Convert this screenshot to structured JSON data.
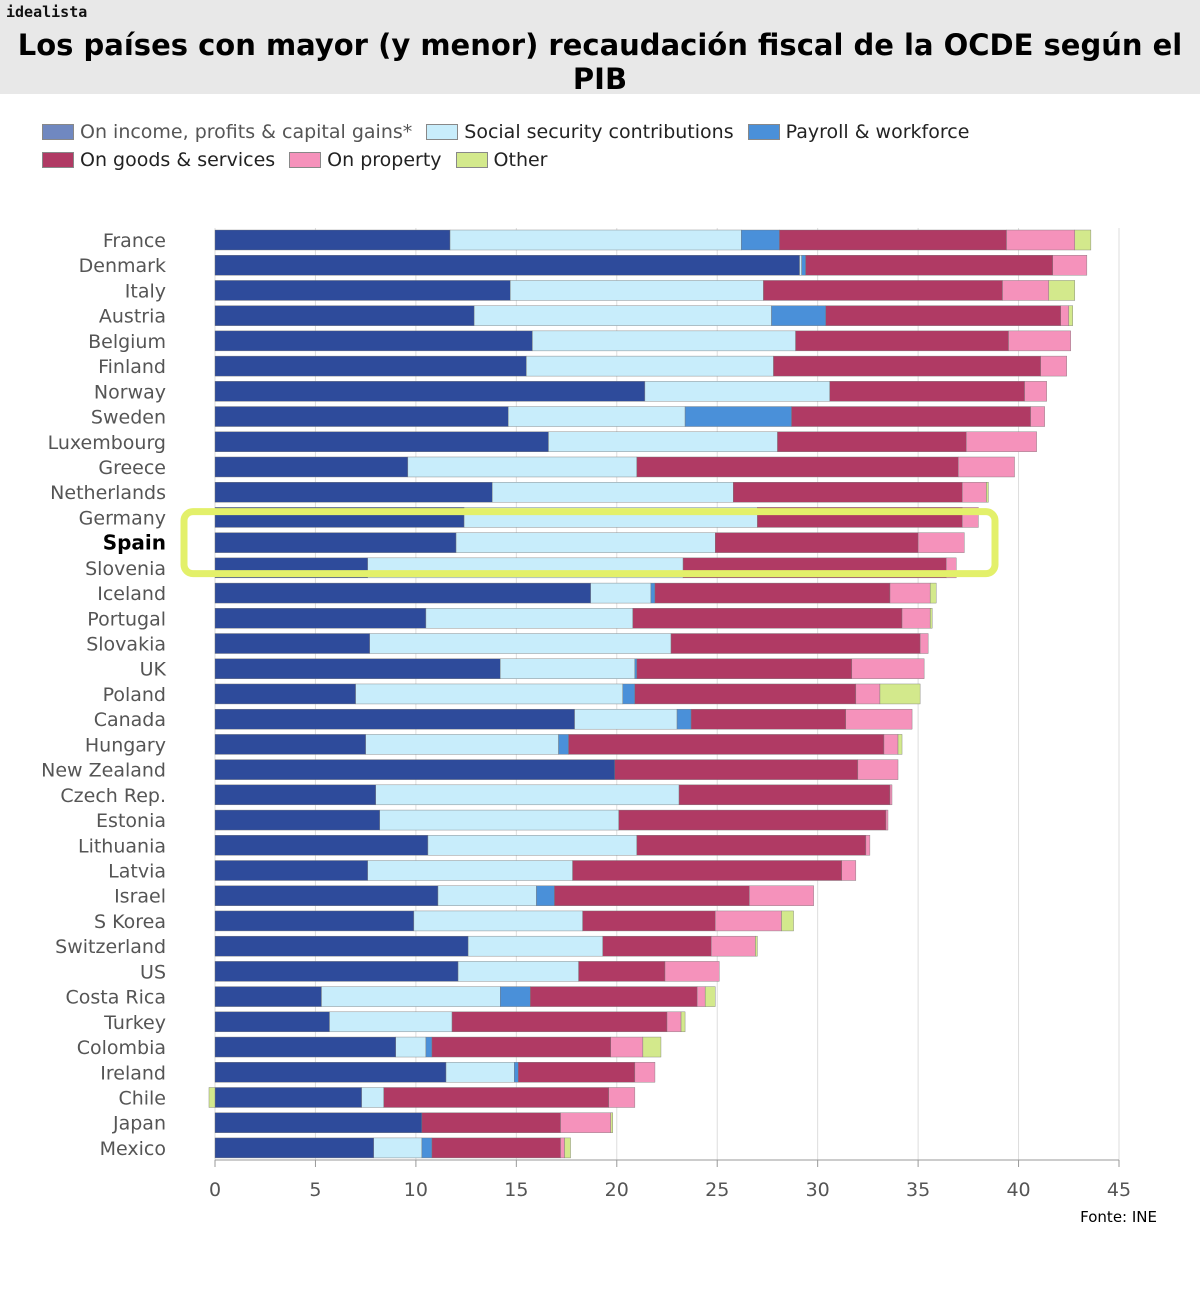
{
  "header": {
    "logo": "idealista",
    "title": "Los países con mayor (y menor) recaudación fiscal de la OCDE según el PIB"
  },
  "source": "Fonte: INE",
  "highlight_color": "#e3f06a",
  "chart_data": {
    "type": "bar",
    "orientation": "horizontal-stacked",
    "xlim": [
      0,
      45
    ],
    "xticks": [
      0,
      5,
      10,
      15,
      20,
      25,
      30,
      35,
      40,
      45
    ],
    "grid": "vertical",
    "legend_position": "top-left",
    "highlighted": "Spain",
    "series": [
      {
        "name": "On income, profits & capital gains*",
        "color": "#2e4b9b",
        "legend_color": "#7088c0"
      },
      {
        "name": "Social security contributions",
        "color": "#c8edfb"
      },
      {
        "name": "Payroll & workforce",
        "color": "#4a90d9"
      },
      {
        "name": "On goods & services",
        "color": "#b03a64"
      },
      {
        "name": "On property",
        "color": "#f592bb"
      },
      {
        "name": "Other",
        "color": "#d3e98c"
      }
    ],
    "categories": [
      "France",
      "Denmark",
      "Italy",
      "Austria",
      "Belgium",
      "Finland",
      "Norway",
      "Sweden",
      "Luxembourg",
      "Greece",
      "Netherlands",
      "Germany",
      "Spain",
      "Slovenia",
      "Iceland",
      "Portugal",
      "Slovakia",
      "UK",
      "Poland",
      "Canada",
      "Hungary",
      "New Zealand",
      "Czech Rep.",
      "Estonia",
      "Lithuania",
      "Latvia",
      "Israel",
      "S Korea",
      "Switzerland",
      "US",
      "Costa Rica",
      "Turkey",
      "Colombia",
      "Ireland",
      "Chile",
      "Japan",
      "Mexico"
    ],
    "values": [
      [
        11.7,
        14.5,
        1.9,
        11.3,
        3.4,
        0.8
      ],
      [
        29.1,
        0.1,
        0.2,
        12.3,
        1.7,
        0
      ],
      [
        14.7,
        12.6,
        0,
        11.9,
        2.3,
        1.3
      ],
      [
        12.9,
        14.8,
        2.7,
        11.7,
        0.4,
        0.2
      ],
      [
        15.8,
        13.1,
        0,
        10.6,
        3.1,
        0
      ],
      [
        15.5,
        12.3,
        0,
        13.3,
        1.3,
        0
      ],
      [
        21.4,
        9.2,
        0,
        9.7,
        1.1,
        0
      ],
      [
        14.6,
        8.8,
        5.3,
        11.9,
        0.7,
        0
      ],
      [
        16.6,
        11.4,
        0,
        9.4,
        3.5,
        0
      ],
      [
        9.6,
        11.4,
        0,
        16.0,
        2.8,
        0
      ],
      [
        13.8,
        12.0,
        0,
        11.4,
        1.2,
        0.1
      ],
      [
        12.4,
        14.6,
        0,
        10.2,
        0.8,
        0
      ],
      [
        12.0,
        12.9,
        0,
        10.1,
        2.3,
        0
      ],
      [
        7.6,
        15.7,
        0,
        13.1,
        0.5,
        0
      ],
      [
        18.7,
        3.0,
        0.2,
        11.7,
        2.0,
        0.3
      ],
      [
        10.5,
        10.3,
        0,
        13.4,
        1.4,
        0.1
      ],
      [
        7.7,
        15.0,
        0,
        12.4,
        0.4,
        0
      ],
      [
        14.2,
        6.7,
        0.1,
        10.7,
        3.6,
        0
      ],
      [
        7.0,
        13.3,
        0.6,
        11.0,
        1.2,
        2.0
      ],
      [
        17.9,
        5.1,
        0.7,
        7.7,
        3.3,
        0
      ],
      [
        7.5,
        9.6,
        0.5,
        15.7,
        0.7,
        0.2
      ],
      [
        19.9,
        0,
        0,
        12.1,
        2.0,
        0
      ],
      [
        8.0,
        15.1,
        0,
        10.5,
        0.1,
        0
      ],
      [
        8.2,
        11.9,
        0,
        13.3,
        0.1,
        0
      ],
      [
        10.6,
        10.4,
        0,
        11.4,
        0.2,
        0
      ],
      [
        7.6,
        10.2,
        0,
        13.4,
        0.7,
        0
      ],
      [
        11.1,
        4.9,
        0.9,
        9.7,
        3.2,
        0
      ],
      [
        9.9,
        8.4,
        0,
        6.6,
        3.3,
        0.6
      ],
      [
        12.6,
        6.7,
        0,
        5.4,
        2.2,
        0.1
      ],
      [
        12.1,
        6.0,
        0,
        4.3,
        2.7,
        0
      ],
      [
        5.3,
        8.9,
        1.5,
        8.3,
        0.4,
        0.5
      ],
      [
        5.7,
        6.1,
        0,
        10.7,
        0.7,
        0.2
      ],
      [
        9.0,
        1.5,
        0.3,
        8.9,
        1.6,
        0.9
      ],
      [
        11.5,
        3.4,
        0.2,
        5.8,
        1.0,
        0
      ],
      [
        7.3,
        1.1,
        0,
        11.2,
        1.3,
        -0.3
      ],
      [
        10.3,
        0,
        0,
        6.9,
        2.5,
        0.1
      ],
      [
        7.9,
        2.4,
        0.5,
        6.4,
        0.2,
        0.3
      ]
    ]
  }
}
